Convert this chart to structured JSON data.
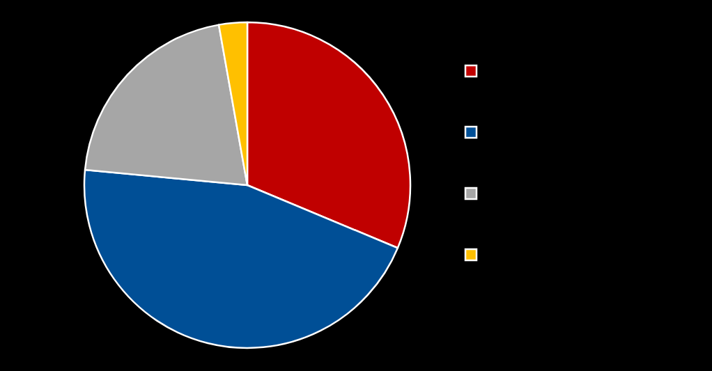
{
  "chart_data": {
    "type": "pie",
    "categories": [
      null,
      null,
      null,
      null
    ],
    "values": [
      31.3,
      45.2,
      20.7,
      2.8
    ],
    "colors": [
      "#c00000",
      "#004f96",
      "#a6a6a6",
      "#ffc000"
    ]
  }
}
